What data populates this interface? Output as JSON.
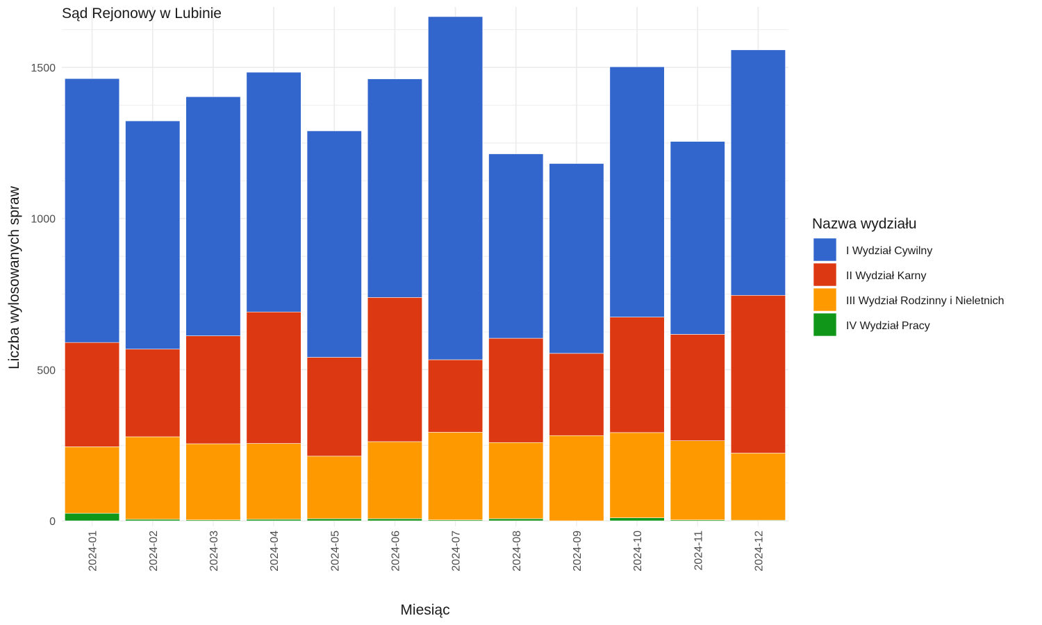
{
  "chart_data": {
    "type": "bar",
    "stacked": true,
    "title": "Sąd Rejonowy w Lubinie",
    "xlabel": "Miesiąc",
    "ylabel": "Liczba wylosowanych spraw",
    "ylim": [
      0,
      1700
    ],
    "yticks": [
      0,
      500,
      1000,
      1500
    ],
    "grid": true,
    "legend_position": "right",
    "legend_title": "Nazwa wydziału",
    "categories": [
      "2024-01",
      "2024-02",
      "2024-03",
      "2024-04",
      "2024-05",
      "2024-06",
      "2024-07",
      "2024-08",
      "2024-09",
      "2024-10",
      "2024-11",
      "2024-12"
    ],
    "series": [
      {
        "name": "IV Wydział Pracy",
        "color": "#109618",
        "values": [
          25,
          5,
          3,
          5,
          7,
          7,
          3,
          7,
          0,
          10,
          3,
          2
        ]
      },
      {
        "name": "III Wydział Rodzinny i Nieletnich",
        "color": "#FF9900",
        "values": [
          220,
          273,
          252,
          251,
          207,
          255,
          290,
          252,
          282,
          282,
          262,
          222
        ]
      },
      {
        "name": "II Wydział Karny",
        "color": "#DC3912",
        "values": [
          345,
          290,
          357,
          435,
          327,
          477,
          240,
          345,
          272,
          382,
          352,
          522
        ]
      },
      {
        "name": "I Wydział Cywilny",
        "color": "#3366CC",
        "values": [
          873,
          755,
          791,
          793,
          749,
          723,
          1135,
          610,
          628,
          828,
          638,
          812
        ]
      }
    ],
    "legend_order": [
      "I Wydział Cywilny",
      "II Wydział Karny",
      "III Wydział Rodzinny i Nieletnich",
      "IV Wydział Pracy"
    ]
  }
}
